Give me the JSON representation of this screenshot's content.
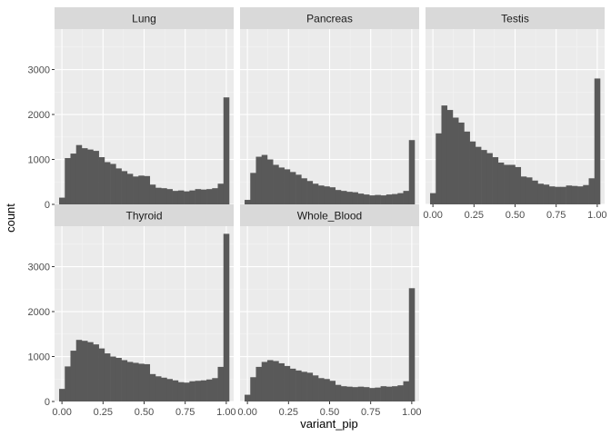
{
  "chart_data": {
    "type": "bar",
    "subtype": "faceted-histogram",
    "xlabel": "variant_pip",
    "ylabel": "count",
    "xlim": [
      0,
      1
    ],
    "ylim": [
      0,
      3900
    ],
    "x_ticks": [
      0,
      0.25,
      0.5,
      0.75,
      1
    ],
    "x_tick_labels": [
      "0.00",
      "0.25",
      "0.50",
      "0.75",
      "1.00"
    ],
    "y_ticks": [
      0,
      1000,
      2000,
      3000
    ],
    "y_tick_labels": [
      "0",
      "1000",
      "2000",
      "3000"
    ],
    "bin_width": 0.0333,
    "colors": {
      "panel_background": "#ebebeb",
      "strip_background": "#d9d9d9",
      "grid_major": "#ffffff",
      "grid_minor": "#f4f4f4",
      "bar_fill": "#595959",
      "tick": "#333333"
    },
    "facets": [
      {
        "name": "Lung",
        "values": [
          150,
          1030,
          1130,
          1320,
          1250,
          1220,
          1190,
          1050,
          940,
          900,
          800,
          740,
          680,
          620,
          640,
          630,
          440,
          370,
          360,
          340,
          300,
          310,
          290,
          310,
          340,
          330,
          340,
          360,
          460,
          2380
        ]
      },
      {
        "name": "Pancreas",
        "values": [
          100,
          700,
          1060,
          1100,
          1000,
          880,
          820,
          780,
          720,
          660,
          580,
          520,
          460,
          420,
          400,
          380,
          320,
          300,
          280,
          270,
          240,
          220,
          200,
          210,
          200,
          220,
          230,
          250,
          300,
          1430
        ]
      },
      {
        "name": "Testis",
        "values": [
          250,
          1580,
          2200,
          2100,
          1930,
          1820,
          1620,
          1400,
          1280,
          1210,
          1140,
          1050,
          930,
          880,
          880,
          830,
          620,
          600,
          530,
          460,
          440,
          400,
          390,
          390,
          420,
          410,
          400,
          430,
          580,
          2800
        ]
      },
      {
        "name": "Thyroid",
        "values": [
          280,
          780,
          1130,
          1370,
          1350,
          1320,
          1270,
          1180,
          1070,
          1000,
          970,
          920,
          880,
          860,
          840,
          830,
          610,
          560,
          530,
          500,
          470,
          430,
          420,
          450,
          460,
          470,
          490,
          520,
          770,
          3730
        ]
      },
      {
        "name": "Whole_Blood",
        "values": [
          150,
          540,
          770,
          880,
          920,
          900,
          850,
          790,
          730,
          690,
          660,
          640,
          580,
          520,
          500,
          460,
          370,
          340,
          330,
          320,
          330,
          320,
          300,
          310,
          340,
          330,
          340,
          360,
          450,
          2520
        ]
      }
    ]
  }
}
